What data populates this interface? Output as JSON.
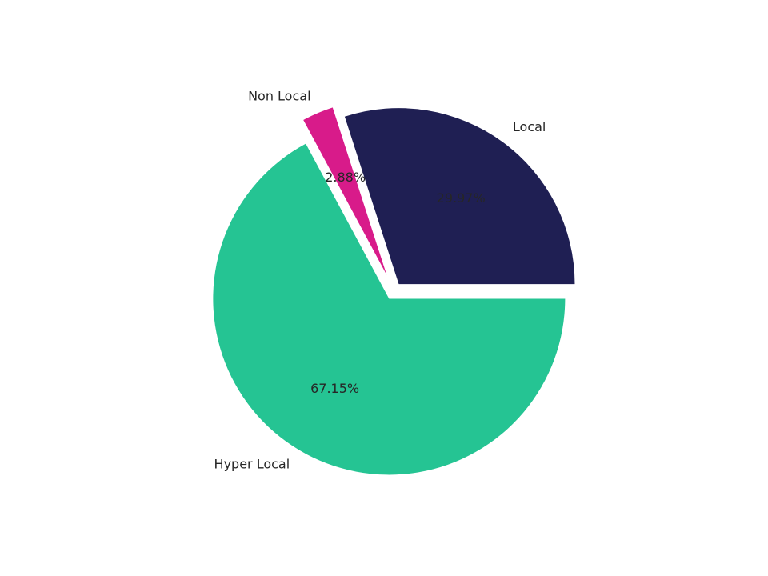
{
  "chart_data": {
    "type": "pie",
    "categories": [
      "Local",
      "Non Local",
      "Hyper Local"
    ],
    "values": [
      29.97,
      2.88,
      67.15
    ],
    "value_labels": [
      "29.97%",
      "2.88%",
      "67.15%"
    ],
    "colors": [
      "#1f1f53",
      "#d81b8a",
      "#25c493"
    ],
    "explode": [
      0.05,
      0.1,
      0.05
    ],
    "startangle": 0
  }
}
